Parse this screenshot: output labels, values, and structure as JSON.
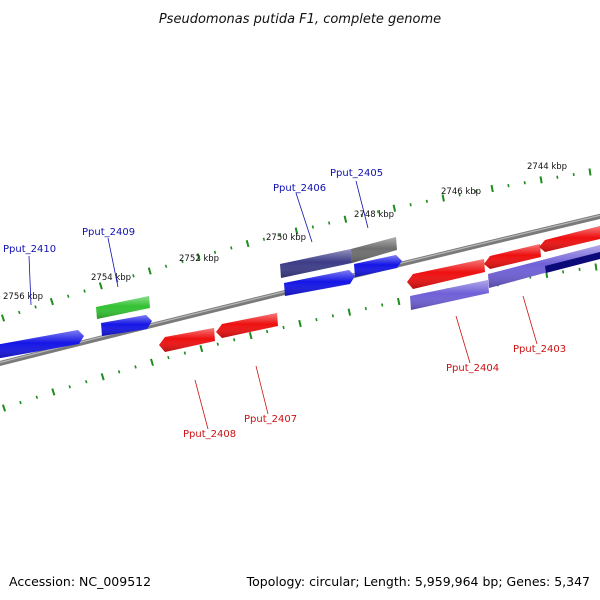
{
  "title": "Pseudomonas putida F1, complete genome",
  "footer": {
    "accession": "Accession: NC_009512",
    "summary": "Topology: circular; Length: 5,959,964 bp; Genes: 5,347"
  },
  "colors": {
    "backbone": "#7a7a7a",
    "tick": "#1e8c1e",
    "forward_label": "#1010b0",
    "reverse_label": "#cc1010",
    "gene_blue": "#1515e6",
    "gene_red": "#ee1010",
    "gene_green": "#33c233",
    "gene_navy": "#3c3c88",
    "gene_gray": "#6e6e6e",
    "gene_lavender": "#7060d8",
    "gene_darknavy": "#0a0a78"
  },
  "scale_labels": [
    "2744 kbp",
    "2746 kbp",
    "2748 kbp",
    "2750 kbp",
    "2752 kbp",
    "2754 kbp",
    "2756 kbp"
  ],
  "gene_labels": {
    "forward": [
      "Pput_2405",
      "Pput_2406",
      "Pput_2409",
      "Pput_2410"
    ],
    "reverse": [
      "Pput_2403",
      "Pput_2404",
      "Pput_2407",
      "Pput_2408"
    ]
  }
}
